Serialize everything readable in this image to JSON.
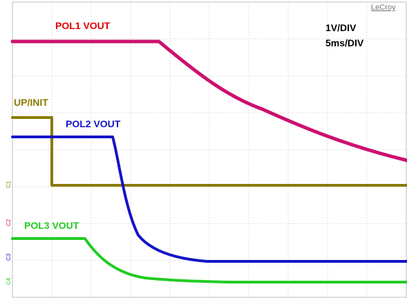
{
  "brand": "LeCroy",
  "scale": {
    "volts": "1V/DIV",
    "time": "5ms/DIV"
  },
  "traces": [
    {
      "label": "POL1 VOUT",
      "channel": "C2"
    },
    {
      "label": "UP/INIT",
      "channel": "C1"
    },
    {
      "label": "POL2 VOUT",
      "channel": "C3"
    },
    {
      "label": "POL3 VOUT",
      "channel": "C4"
    }
  ]
}
